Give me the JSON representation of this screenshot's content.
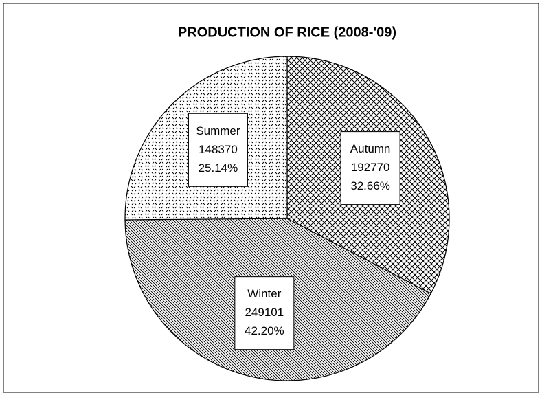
{
  "chart_data": {
    "type": "pie",
    "title": "PRODUCTION OF RICE (2008-'09)",
    "categories": [
      "Autumn",
      "Winter",
      "Summer"
    ],
    "values": [
      192770,
      249101,
      148370
    ],
    "percent_labels": [
      "32.66%",
      "42.20%",
      "25.14%"
    ]
  }
}
